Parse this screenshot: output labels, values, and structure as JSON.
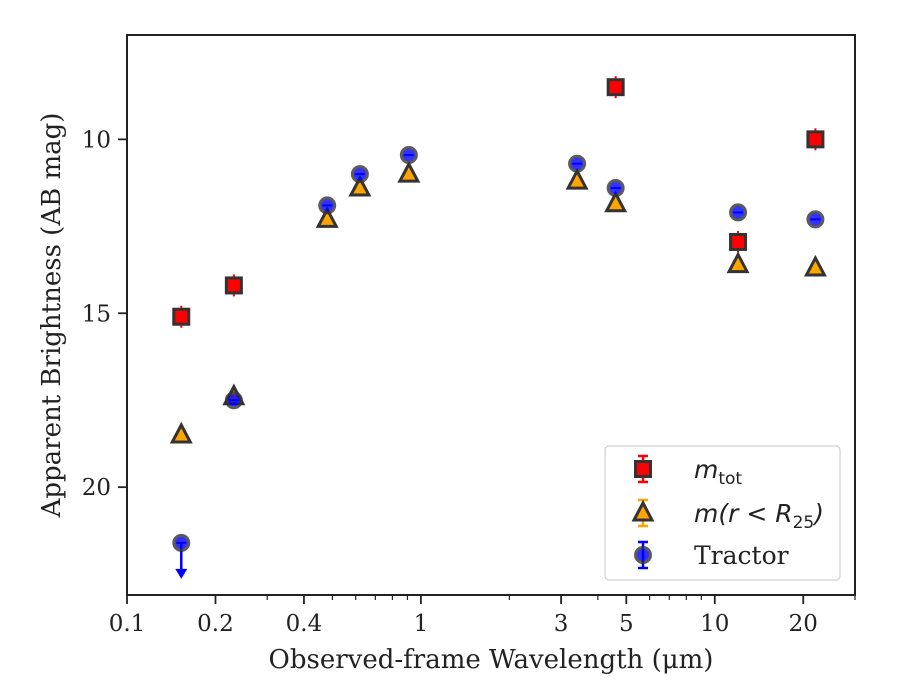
{
  "chart_data": {
    "type": "scatter",
    "title": "",
    "xlabel": "Observed-frame Wavelength (μm)",
    "ylabel": "Apparent Brightness (AB mag)",
    "xscale": "log",
    "xlim": [
      0.1,
      30
    ],
    "ylim": [
      23.1,
      7.0
    ],
    "y_inverted": true,
    "x_ticks": [
      0.1,
      0.2,
      0.4,
      1,
      3,
      5,
      10,
      20
    ],
    "x_tick_labels": [
      "0.1",
      "0.2",
      "0.4",
      "1",
      "3",
      "5",
      "10",
      "20"
    ],
    "y_ticks": [
      10,
      15,
      20
    ],
    "y_tick_labels": [
      "10",
      "15",
      "20"
    ],
    "grid": false,
    "legend_position": "lower-right",
    "series": [
      {
        "name": "m_tot",
        "label_main": "m",
        "label_sub": "tot",
        "marker": "square",
        "color": "#ff0000",
        "points": [
          {
            "x": 0.153,
            "y": 15.1
          },
          {
            "x": 0.231,
            "y": 14.2
          },
          {
            "x": 4.6,
            "y": 8.5
          },
          {
            "x": 12.0,
            "y": 12.95
          },
          {
            "x": 22.0,
            "y": 10.0
          }
        ]
      },
      {
        "name": "m(r < R_25)",
        "label_main": "m(r < R",
        "label_sub": "25",
        "label_end": ")",
        "marker": "triangle",
        "color": "#ffa500",
        "points": [
          {
            "x": 0.153,
            "y": 18.5
          },
          {
            "x": 0.231,
            "y": 17.4
          },
          {
            "x": 0.48,
            "y": 12.3
          },
          {
            "x": 0.62,
            "y": 11.4
          },
          {
            "x": 0.91,
            "y": 11.0
          },
          {
            "x": 3.4,
            "y": 11.2
          },
          {
            "x": 4.6,
            "y": 11.85
          },
          {
            "x": 12.0,
            "y": 13.6
          },
          {
            "x": 22.0,
            "y": 13.7
          }
        ]
      },
      {
        "name": "Tractor",
        "label_main": "Tractor",
        "marker": "circle",
        "color": "#0000ff",
        "points": [
          {
            "x": 0.153,
            "y": 21.6,
            "upper_limit": true
          },
          {
            "x": 0.231,
            "y": 17.5
          },
          {
            "x": 0.48,
            "y": 11.9
          },
          {
            "x": 0.62,
            "y": 11.0
          },
          {
            "x": 0.91,
            "y": 10.45
          },
          {
            "x": 3.4,
            "y": 10.7
          },
          {
            "x": 4.6,
            "y": 11.4
          },
          {
            "x": 12.0,
            "y": 12.1
          },
          {
            "x": 22.0,
            "y": 12.3
          }
        ]
      }
    ]
  }
}
